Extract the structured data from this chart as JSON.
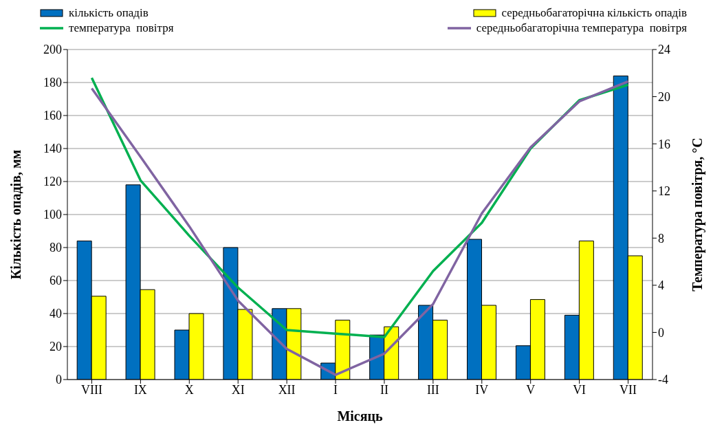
{
  "chart_data": {
    "type": "bar",
    "xlabel": "Місяць",
    "ylabel": "Кількість опадів, мм",
    "y2label": "Температура  повітря, °С",
    "categories": [
      "VIII",
      "IX",
      "X",
      "XI",
      "XII",
      "I",
      "II",
      "III",
      "IV",
      "V",
      "VI",
      "VII"
    ],
    "series": [
      {
        "name": "кількість опадів",
        "color": "#0070c0",
        "values": [
          84,
          118,
          30,
          80,
          43,
          10,
          27,
          45,
          85,
          20.5,
          39,
          184
        ]
      },
      {
        "name": "середньобагаторічна кількість опадів",
        "color": "#ffff00",
        "values": [
          50.5,
          54.5,
          40,
          42.5,
          43,
          36,
          32,
          36,
          45,
          48.5,
          84,
          75
        ]
      },
      {
        "name": "температура  повітря",
        "type": "line",
        "axis": "y2",
        "color": "#00b050",
        "values": [
          21.6,
          12.9,
          8.2,
          3.8,
          0.2,
          -0.1,
          -0.4,
          5.2,
          9.3,
          15.6,
          19.7,
          21
        ]
      },
      {
        "name": "середньобагаторічна температура  повітря",
        "type": "line",
        "axis": "y2",
        "color": "#8064a2",
        "values": [
          20.7,
          14.9,
          9,
          2.7,
          -1.4,
          -3.6,
          -1.8,
          2.4,
          10.1,
          15.7,
          19.6,
          21.3
        ]
      }
    ],
    "ylim": [
      0,
      200
    ],
    "yticks": [
      0,
      20,
      40,
      60,
      80,
      100,
      120,
      140,
      160,
      180,
      200
    ],
    "y2lim": [
      -4,
      24
    ],
    "y2ticks": [
      -4,
      0,
      4,
      8,
      12,
      16,
      20,
      24
    ],
    "grid": "y",
    "legend": "top",
    "marker": "none",
    "line_style": "solid"
  }
}
